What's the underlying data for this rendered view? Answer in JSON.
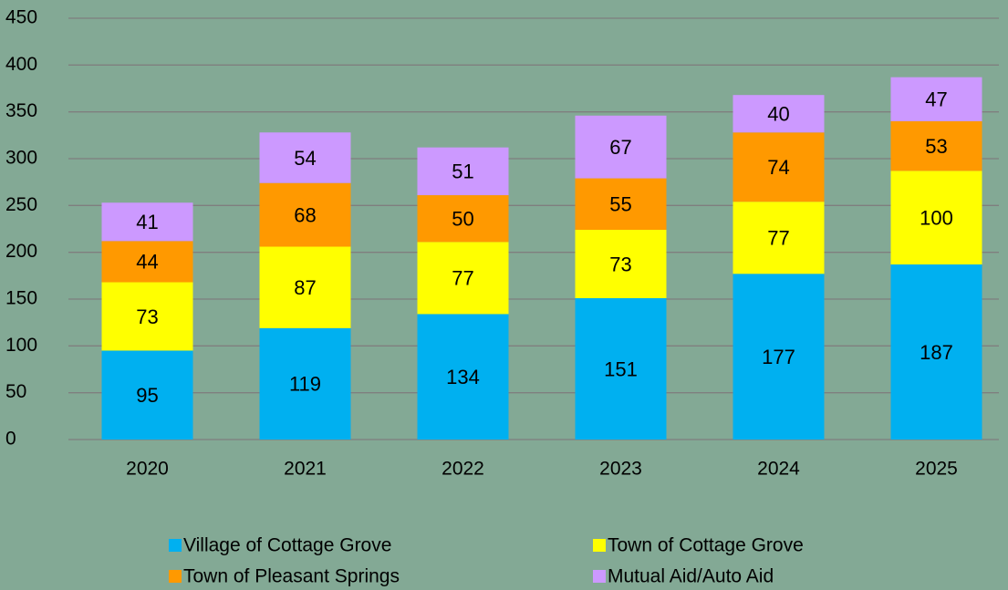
{
  "chart_data": {
    "type": "stacked_bar",
    "categories": [
      "2020",
      "2021",
      "2022",
      "2023",
      "2024",
      "2025"
    ],
    "series": [
      {
        "name": "Village of Cottage Grove",
        "color": "#00b0f0",
        "values": [
          95,
          119,
          134,
          151,
          177,
          187
        ]
      },
      {
        "name": "Town of Cottage Grove",
        "color": "#ffff00",
        "values": [
          73,
          87,
          77,
          73,
          77,
          100
        ]
      },
      {
        "name": "Town of Pleasant Springs",
        "color": "#ff9900",
        "values": [
          44,
          68,
          50,
          55,
          74,
          53
        ]
      },
      {
        "name": "Mutual Aid/Auto Aid",
        "color": "#cc99ff",
        "values": [
          41,
          54,
          51,
          67,
          40,
          47
        ]
      }
    ],
    "ylim": [
      0,
      450
    ],
    "yticks": [
      0,
      50,
      100,
      150,
      200,
      250,
      300,
      350,
      400,
      450
    ],
    "grid": true
  }
}
